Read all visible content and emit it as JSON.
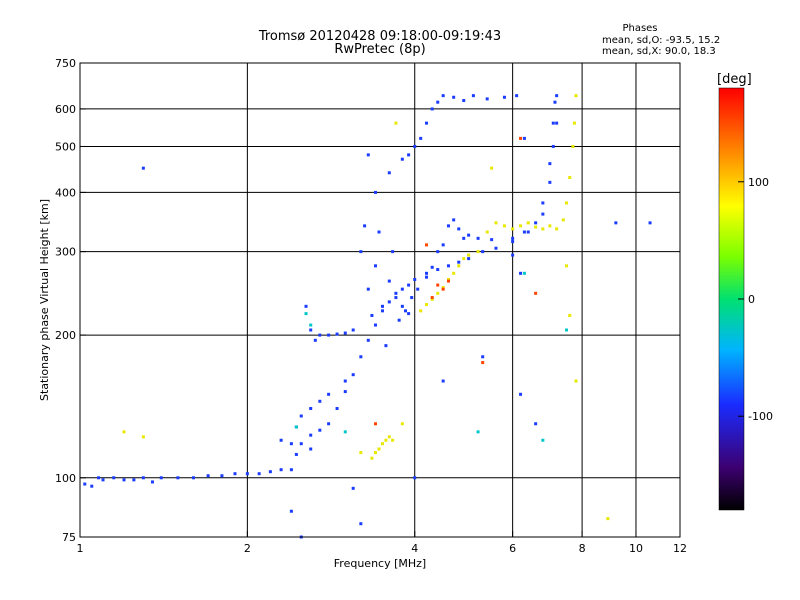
{
  "chart_data": {
    "type": "scatter",
    "title": "Tromsø 20120428 09:18:00-09:19:43",
    "subtitle": "RwPretec (8p)",
    "phases_box": {
      "heading": "Phases",
      "line1": "mean, sd,O: -93.5, 15.2",
      "line2": "mean, sd,X:  90.0, 18.3"
    },
    "xlabel": "Frequency [MHz]",
    "ylabel": "Stationary phase Virtual Height [km]",
    "x_scale": "log",
    "y_scale": "log",
    "xlim": [
      1,
      12
    ],
    "ylim": [
      75,
      750
    ],
    "x_ticks": [
      1,
      2,
      4,
      6,
      8,
      10,
      12
    ],
    "x_tick_labels": [
      "1",
      "2",
      "4",
      "6",
      "8",
      "10",
      "12"
    ],
    "x_grid": [
      2,
      4,
      6,
      8,
      10
    ],
    "y_ticks": [
      75,
      100,
      200,
      300,
      400,
      500,
      600,
      750
    ],
    "y_tick_labels": [
      "75",
      "100",
      "200",
      "300",
      "400",
      "500",
      "600",
      "750"
    ],
    "y_grid": [
      100,
      200,
      300,
      400,
      500,
      600
    ],
    "grid": true,
    "colorbar": {
      "label": "[deg]",
      "min": -180,
      "max": 180,
      "ticks": [
        100,
        0,
        -100
      ],
      "tick_labels": [
        "100",
        "0",
        "-100"
      ]
    },
    "series": [
      {
        "color_hint": "#1a3cff",
        "points": [
          [
            1.02,
            97
          ],
          [
            1.05,
            96
          ],
          [
            1.08,
            100
          ],
          [
            1.1,
            99
          ],
          [
            1.15,
            100
          ],
          [
            1.2,
            99
          ],
          [
            1.25,
            99
          ],
          [
            1.3,
            100
          ],
          [
            1.35,
            98
          ],
          [
            1.4,
            100
          ],
          [
            1.5,
            100
          ],
          [
            1.6,
            100
          ],
          [
            1.7,
            101
          ],
          [
            1.8,
            101
          ],
          [
            1.9,
            102
          ],
          [
            2.0,
            102
          ],
          [
            2.1,
            102
          ],
          [
            2.2,
            103
          ],
          [
            2.3,
            104
          ],
          [
            2.4,
            104
          ],
          [
            2.45,
            112
          ],
          [
            2.5,
            118
          ],
          [
            2.6,
            123
          ],
          [
            2.7,
            126
          ],
          [
            2.8,
            130
          ],
          [
            2.9,
            140
          ],
          [
            3.0,
            152
          ],
          [
            3.1,
            165
          ],
          [
            3.2,
            180
          ],
          [
            3.3,
            195
          ],
          [
            3.4,
            210
          ],
          [
            3.5,
            225
          ],
          [
            3.6,
            235
          ],
          [
            3.7,
            245
          ],
          [
            3.8,
            250
          ],
          [
            3.9,
            255
          ],
          [
            4.0,
            262
          ],
          [
            4.2,
            270
          ],
          [
            4.4,
            275
          ],
          [
            4.6,
            280
          ],
          [
            4.8,
            285
          ],
          [
            5.0,
            290
          ],
          [
            5.3,
            300
          ],
          [
            5.6,
            305
          ],
          [
            6.0,
            315
          ],
          [
            6.4,
            330
          ],
          [
            6.8,
            360
          ],
          [
            7.0,
            420
          ],
          [
            7.1,
            500
          ],
          [
            7.2,
            560
          ],
          [
            7.2,
            640
          ],
          [
            2.55,
            230
          ],
          [
            2.6,
            205
          ],
          [
            2.65,
            195
          ],
          [
            2.7,
            200
          ],
          [
            2.8,
            200
          ],
          [
            2.9,
            201
          ],
          [
            3.0,
            202
          ],
          [
            3.1,
            205
          ],
          [
            3.2,
            300
          ],
          [
            3.25,
            340
          ],
          [
            3.3,
            250
          ],
          [
            3.35,
            220
          ],
          [
            3.4,
            280
          ],
          [
            3.45,
            330
          ],
          [
            3.5,
            230
          ],
          [
            3.55,
            190
          ],
          [
            3.6,
            260
          ],
          [
            3.65,
            300
          ],
          [
            3.7,
            240
          ],
          [
            3.75,
            215
          ],
          [
            3.8,
            230
          ],
          [
            3.85,
            225
          ],
          [
            3.9,
            222
          ],
          [
            3.95,
            240
          ],
          [
            4.05,
            250
          ],
          [
            4.2,
            265
          ],
          [
            4.3,
            278
          ],
          [
            4.4,
            300
          ],
          [
            4.5,
            310
          ],
          [
            4.6,
            340
          ],
          [
            4.7,
            350
          ],
          [
            4.8,
            335
          ],
          [
            4.9,
            320
          ],
          [
            5.0,
            325
          ],
          [
            5.2,
            320
          ],
          [
            5.5,
            318
          ],
          [
            6.0,
            320
          ],
          [
            6.3,
            330
          ],
          [
            6.6,
            345
          ],
          [
            6.8,
            380
          ],
          [
            7.0,
            460
          ],
          [
            7.1,
            560
          ],
          [
            7.15,
            620
          ],
          [
            3.4,
            400
          ],
          [
            3.6,
            440
          ],
          [
            3.8,
            470
          ],
          [
            3.9,
            480
          ],
          [
            4.0,
            500
          ],
          [
            4.1,
            520
          ],
          [
            4.2,
            560
          ],
          [
            4.3,
            600
          ],
          [
            4.4,
            620
          ],
          [
            4.5,
            640
          ],
          [
            4.7,
            635
          ],
          [
            4.9,
            625
          ],
          [
            5.1,
            640
          ],
          [
            5.4,
            630
          ],
          [
            5.8,
            635
          ],
          [
            6.1,
            640
          ],
          [
            2.3,
            120
          ],
          [
            2.4,
            118
          ],
          [
            2.45,
            128
          ],
          [
            2.5,
            135
          ],
          [
            2.6,
            140
          ],
          [
            2.7,
            145
          ],
          [
            2.8,
            150
          ],
          [
            3.0,
            160
          ],
          [
            4.0,
            100
          ],
          [
            5.3,
            180
          ],
          [
            6.2,
            150
          ],
          [
            6.2,
            270
          ],
          [
            6.0,
            295
          ],
          [
            9.2,
            345
          ],
          [
            10.6,
            345
          ],
          [
            1.3,
            450
          ],
          [
            3.3,
            480
          ],
          [
            6.6,
            130
          ],
          [
            4.5,
            160
          ],
          [
            3.1,
            95
          ],
          [
            2.4,
            85
          ],
          [
            2.5,
            75
          ],
          [
            3.2,
            80
          ],
          [
            6.3,
            520
          ],
          [
            2.6,
            115
          ]
        ]
      },
      {
        "color_hint": "#e8e800",
        "points": [
          [
            4.1,
            225
          ],
          [
            4.2,
            232
          ],
          [
            4.3,
            238
          ],
          [
            4.4,
            245
          ],
          [
            4.5,
            252
          ],
          [
            4.6,
            262
          ],
          [
            4.7,
            270
          ],
          [
            4.8,
            280
          ],
          [
            4.9,
            290
          ],
          [
            5.0,
            295
          ],
          [
            5.2,
            300
          ],
          [
            5.4,
            330
          ],
          [
            5.6,
            345
          ],
          [
            5.8,
            340
          ],
          [
            6.0,
            335
          ],
          [
            6.2,
            340
          ],
          [
            6.4,
            345
          ],
          [
            6.6,
            338
          ],
          [
            6.8,
            335
          ],
          [
            7.0,
            340
          ],
          [
            7.2,
            335
          ],
          [
            7.4,
            350
          ],
          [
            7.5,
            380
          ],
          [
            7.6,
            430
          ],
          [
            7.7,
            500
          ],
          [
            7.75,
            560
          ],
          [
            7.8,
            640
          ],
          [
            3.35,
            110
          ],
          [
            3.4,
            113
          ],
          [
            3.45,
            115
          ],
          [
            3.5,
            118
          ],
          [
            3.55,
            120
          ],
          [
            3.6,
            122
          ],
          [
            3.65,
            120
          ],
          [
            3.2,
            113
          ],
          [
            3.8,
            130
          ],
          [
            3.7,
            560
          ],
          [
            1.2,
            125
          ],
          [
            1.3,
            122
          ],
          [
            7.8,
            160
          ],
          [
            7.6,
            220
          ],
          [
            7.5,
            280
          ],
          [
            8.9,
            82
          ],
          [
            5.5,
            450
          ]
        ]
      },
      {
        "color_hint": "#ff4400",
        "points": [
          [
            4.4,
            255
          ],
          [
            4.5,
            250
          ],
          [
            4.6,
            260
          ],
          [
            4.3,
            240
          ],
          [
            5.3,
            175
          ],
          [
            6.2,
            520
          ],
          [
            6.6,
            245
          ],
          [
            3.4,
            130
          ],
          [
            4.2,
            310
          ]
        ]
      },
      {
        "color_hint": "#00c8c8",
        "points": [
          [
            2.55,
            222
          ],
          [
            2.6,
            210
          ],
          [
            2.45,
            128
          ],
          [
            5.2,
            125
          ],
          [
            6.3,
            270
          ],
          [
            6.8,
            120
          ],
          [
            3.0,
            125
          ],
          [
            7.5,
            205
          ]
        ]
      }
    ]
  }
}
